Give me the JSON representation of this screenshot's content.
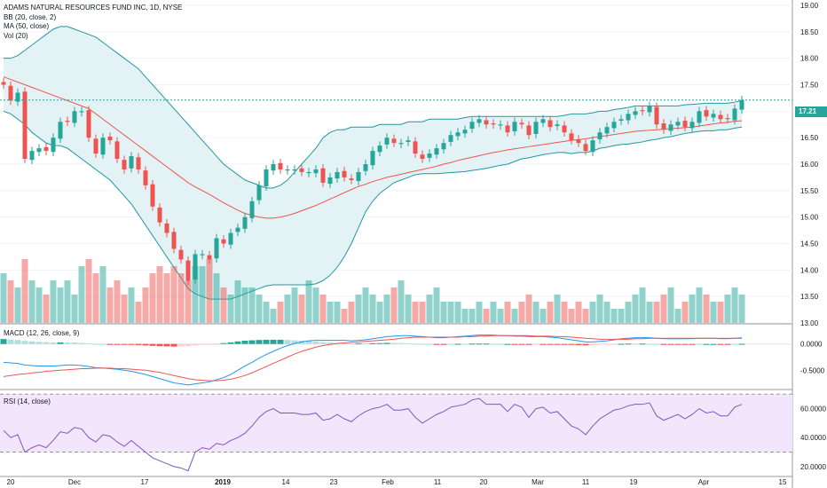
{
  "chart": {
    "legend_main": {
      "title": "ADAMS NATURAL RESOURCES FUND INC, 1D, NYSE",
      "bb": "BB (20, close, 2)",
      "ma": "MA (50, close)",
      "vol": "Vol (20)"
    },
    "macd_label": "MACD (12, 26, close, 9)",
    "rsi_label": "RSI (14, close)",
    "last_price_label": "17.21",
    "colors": {
      "up": "#26a69a",
      "down": "#ef5350",
      "bb_line": "#2196a0",
      "bb_fill": "#e3f3f5",
      "ma": "#ef5350",
      "macd": "#2196f3",
      "signal": "#ef5350",
      "rsi": "#7e57c2",
      "rsi_band": "#f3e5fb"
    }
  },
  "chart_data": {
    "type": "candlestick",
    "title": "ADAMS NATURAL RESOURCES FUND INC, 1D, NYSE",
    "x_tick_labels": [
      "20",
      "Dec",
      "17",
      "2019",
      "14",
      "23",
      "Feb",
      "11",
      "20",
      "Mar",
      "11",
      "19",
      "Apr",
      "15"
    ],
    "price_axis_labels": [
      "19.00",
      "18.50",
      "18.00",
      "17.50",
      "17.00",
      "16.50",
      "16.00",
      "15.50",
      "15.00",
      "14.50",
      "14.00",
      "13.50",
      "13.00"
    ],
    "price_range": [
      13.0,
      19.0
    ],
    "last_price": 17.21,
    "macd_axis_labels": [
      "0.0000",
      "-0.5000"
    ],
    "macd_range": [
      -0.85,
      0.35
    ],
    "rsi_axis_labels": [
      "60.0000",
      "40.0000",
      "20.0000"
    ],
    "rsi_range": [
      15,
      72
    ],
    "rsi_band": [
      30,
      70
    ],
    "closes": [
      17.5,
      17.2,
      17.35,
      16.1,
      16.25,
      16.3,
      16.25,
      16.5,
      16.8,
      16.8,
      17.0,
      17.0,
      16.5,
      16.2,
      16.5,
      16.45,
      16.1,
      15.9,
      16.15,
      15.9,
      15.6,
      15.2,
      14.9,
      14.7,
      14.4,
      14.2,
      13.8,
      14.3,
      14.3,
      14.2,
      14.6,
      14.5,
      14.7,
      14.8,
      15.0,
      15.3,
      15.6,
      15.9,
      16.0,
      15.9,
      15.9,
      15.9,
      15.85,
      15.85,
      15.9,
      15.65,
      15.75,
      15.85,
      15.75,
      15.7,
      15.85,
      16.0,
      16.25,
      16.35,
      16.5,
      16.4,
      16.4,
      16.45,
      16.2,
      16.1,
      16.2,
      16.3,
      16.4,
      16.55,
      16.6,
      16.65,
      16.8,
      16.85,
      16.75,
      16.75,
      16.75,
      16.6,
      16.8,
      16.75,
      16.55,
      16.8,
      16.85,
      16.7,
      16.75,
      16.6,
      16.45,
      16.4,
      16.25,
      16.45,
      16.6,
      16.7,
      16.8,
      16.85,
      16.95,
      17.0,
      17.0,
      17.1,
      16.75,
      16.65,
      16.75,
      16.8,
      16.7,
      16.8,
      17.0,
      16.9,
      16.95,
      16.85,
      16.85,
      17.05,
      17.21
    ],
    "volumes": [
      7,
      6,
      5,
      9,
      6,
      5,
      4,
      6,
      5,
      6,
      4,
      8,
      9,
      7,
      8,
      5,
      6,
      4,
      5,
      3,
      5,
      7,
      8,
      7,
      8,
      7,
      6,
      8,
      8,
      9,
      7,
      5,
      4,
      6,
      5,
      5,
      4,
      3,
      2,
      3,
      4,
      5,
      4,
      6,
      5,
      4,
      3,
      3,
      2,
      3,
      4,
      5,
      4,
      3,
      4,
      5,
      6,
      4,
      3,
      3,
      4,
      5,
      3,
      3,
      3,
      2,
      2,
      3,
      2,
      3,
      2,
      3,
      2,
      3,
      4,
      3,
      2,
      3,
      4,
      3,
      2,
      3,
      2,
      3,
      4,
      3,
      2,
      2,
      3,
      4,
      5,
      3,
      3,
      4,
      5,
      2,
      3,
      4,
      5,
      4,
      3,
      3,
      4,
      5,
      4
    ],
    "macd_values": [
      -0.35,
      -0.36,
      -0.37,
      -0.4,
      -0.41,
      -0.42,
      -0.42,
      -0.42,
      -0.41,
      -0.4,
      -0.4,
      -0.41,
      -0.43,
      -0.45,
      -0.46,
      -0.47,
      -0.48,
      -0.5,
      -0.52,
      -0.55,
      -0.58,
      -0.62,
      -0.66,
      -0.7,
      -0.74,
      -0.76,
      -0.78,
      -0.76,
      -0.74,
      -0.72,
      -0.68,
      -0.64,
      -0.58,
      -0.5,
      -0.42,
      -0.35,
      -0.27,
      -0.2,
      -0.14,
      -0.08,
      -0.03,
      0.01,
      0.04,
      0.06,
      0.07,
      0.07,
      0.07,
      0.07,
      0.07,
      0.06,
      0.07,
      0.08,
      0.1,
      0.12,
      0.14,
      0.15,
      0.16,
      0.16,
      0.15,
      0.14,
      0.13,
      0.12,
      0.12,
      0.13,
      0.14,
      0.15,
      0.16,
      0.17,
      0.17,
      0.17,
      0.16,
      0.16,
      0.15,
      0.15,
      0.14,
      0.14,
      0.14,
      0.13,
      0.12,
      0.1,
      0.08,
      0.06,
      0.04,
      0.04,
      0.05,
      0.06,
      0.08,
      0.1,
      0.11,
      0.12,
      0.12,
      0.12,
      0.11,
      0.1,
      0.1,
      0.1,
      0.1,
      0.1,
      0.11,
      0.11,
      0.11,
      0.1,
      0.1,
      0.11,
      0.12
    ],
    "signal_values": [
      -0.62,
      -0.6,
      -0.58,
      -0.57,
      -0.55,
      -0.54,
      -0.52,
      -0.51,
      -0.5,
      -0.49,
      -0.48,
      -0.47,
      -0.47,
      -0.46,
      -0.46,
      -0.46,
      -0.47,
      -0.47,
      -0.48,
      -0.49,
      -0.5,
      -0.52,
      -0.54,
      -0.57,
      -0.6,
      -0.63,
      -0.66,
      -0.68,
      -0.69,
      -0.7,
      -0.7,
      -0.69,
      -0.67,
      -0.64,
      -0.6,
      -0.55,
      -0.49,
      -0.43,
      -0.37,
      -0.31,
      -0.25,
      -0.19,
      -0.14,
      -0.1,
      -0.06,
      -0.03,
      -0.01,
      0.01,
      0.02,
      0.03,
      0.04,
      0.05,
      0.06,
      0.07,
      0.08,
      0.09,
      0.11,
      0.12,
      0.13,
      0.13,
      0.13,
      0.13,
      0.13,
      0.13,
      0.13,
      0.14,
      0.14,
      0.15,
      0.15,
      0.16,
      0.16,
      0.16,
      0.16,
      0.16,
      0.16,
      0.15,
      0.15,
      0.15,
      0.14,
      0.14,
      0.13,
      0.12,
      0.11,
      0.1,
      0.09,
      0.09,
      0.09,
      0.09,
      0.09,
      0.1,
      0.1,
      0.11,
      0.11,
      0.11,
      0.11,
      0.11,
      0.11,
      0.11,
      0.11,
      0.11,
      0.11,
      0.11,
      0.11,
      0.11,
      0.11
    ],
    "rsi_values": [
      45,
      40,
      42,
      30,
      33,
      35,
      33,
      38,
      44,
      43,
      47,
      46,
      40,
      37,
      42,
      41,
      37,
      34,
      38,
      34,
      30,
      26,
      24,
      22,
      20,
      19,
      17,
      30,
      33,
      32,
      36,
      35,
      38,
      40,
      43,
      48,
      54,
      58,
      60,
      57,
      57,
      57,
      56,
      56,
      57,
      52,
      53,
      56,
      53,
      51,
      55,
      58,
      60,
      61,
      63,
      59,
      59,
      60,
      54,
      50,
      53,
      56,
      58,
      61,
      62,
      63,
      66,
      67,
      63,
      63,
      63,
      58,
      63,
      61,
      54,
      60,
      61,
      57,
      58,
      53,
      48,
      46,
      42,
      48,
      53,
      56,
      59,
      60,
      62,
      63,
      63,
      64,
      55,
      52,
      54,
      56,
      53,
      56,
      60,
      57,
      58,
      55,
      55,
      61,
      63
    ],
    "bb_upper": [
      18.0,
      18.0,
      18.05,
      18.15,
      18.25,
      18.35,
      18.45,
      18.55,
      18.6,
      18.6,
      18.55,
      18.5,
      18.45,
      18.4,
      18.3,
      18.2,
      18.1,
      18.0,
      17.9,
      17.8,
      17.65,
      17.5,
      17.35,
      17.2,
      17.05,
      16.9,
      16.75,
      16.6,
      16.45,
      16.3,
      16.15,
      16.0,
      15.9,
      15.8,
      15.7,
      15.65,
      15.6,
      15.55,
      15.55,
      15.6,
      15.7,
      15.85,
      16.0,
      16.15,
      16.3,
      16.5,
      16.6,
      16.65,
      16.65,
      16.7,
      16.7,
      16.7,
      16.7,
      16.75,
      16.75,
      16.75,
      16.75,
      16.8,
      16.8,
      16.8,
      16.85,
      16.85,
      16.85,
      16.85,
      16.85,
      16.88,
      16.9,
      16.9,
      16.9,
      16.9,
      16.9,
      16.9,
      16.9,
      16.9,
      16.9,
      16.9,
      16.9,
      16.9,
      16.9,
      16.92,
      16.95,
      16.95,
      16.95,
      16.97,
      17.0,
      17.0,
      17.03,
      17.05,
      17.07,
      17.1,
      17.1,
      17.1,
      17.1,
      17.1,
      17.1,
      17.1,
      17.12,
      17.13,
      17.14,
      17.15,
      17.15,
      17.15,
      17.15,
      17.17,
      17.2
    ],
    "bb_lower": [
      17.0,
      16.95,
      16.85,
      16.75,
      16.6,
      16.5,
      16.4,
      16.35,
      16.35,
      16.3,
      16.2,
      16.1,
      16.0,
      15.9,
      15.8,
      15.7,
      15.55,
      15.4,
      15.25,
      15.05,
      14.85,
      14.65,
      14.45,
      14.25,
      14.05,
      13.85,
      13.65,
      13.55,
      13.5,
      13.45,
      13.45,
      13.45,
      13.45,
      13.5,
      13.55,
      13.6,
      13.65,
      13.7,
      13.72,
      13.72,
      13.72,
      13.72,
      13.72,
      13.72,
      13.74,
      13.8,
      13.9,
      14.05,
      14.25,
      14.5,
      14.8,
      15.1,
      15.3,
      15.45,
      15.55,
      15.65,
      15.7,
      15.75,
      15.8,
      15.82,
      15.82,
      15.82,
      15.83,
      15.84,
      15.85,
      15.86,
      15.88,
      15.9,
      15.92,
      15.95,
      15.98,
      16.0,
      16.05,
      16.1,
      16.12,
      16.15,
      16.18,
      16.2,
      16.22,
      16.22,
      16.2,
      16.22,
      16.22,
      16.25,
      16.3,
      16.32,
      16.35,
      16.37,
      16.38,
      16.4,
      16.42,
      16.45,
      16.47,
      16.5,
      16.52,
      16.55,
      16.58,
      16.6,
      16.62,
      16.63,
      16.63,
      16.65,
      16.65,
      16.68,
      16.7
    ],
    "ma_values": [
      17.65,
      17.6,
      17.55,
      17.5,
      17.45,
      17.4,
      17.35,
      17.3,
      17.25,
      17.2,
      17.15,
      17.1,
      17.05,
      16.95,
      16.85,
      16.75,
      16.65,
      16.55,
      16.45,
      16.35,
      16.25,
      16.15,
      16.05,
      15.95,
      15.85,
      15.75,
      15.65,
      15.57,
      15.5,
      15.43,
      15.35,
      15.27,
      15.2,
      15.13,
      15.07,
      15.03,
      15.0,
      14.98,
      14.98,
      15.0,
      15.03,
      15.07,
      15.12,
      15.17,
      15.22,
      15.28,
      15.34,
      15.4,
      15.46,
      15.52,
      15.58,
      15.62,
      15.67,
      15.71,
      15.75,
      15.78,
      15.81,
      15.84,
      15.87,
      15.9,
      15.93,
      15.96,
      16.0,
      16.03,
      16.07,
      16.1,
      16.13,
      16.16,
      16.19,
      16.22,
      16.24,
      16.27,
      16.29,
      16.31,
      16.33,
      16.35,
      16.37,
      16.39,
      16.41,
      16.43,
      16.45,
      16.46,
      16.48,
      16.5,
      16.52,
      16.54,
      16.56,
      16.58,
      16.6,
      16.62,
      16.63,
      16.64,
      16.65,
      16.66,
      16.67,
      16.68,
      16.69,
      16.7,
      16.72,
      16.74,
      16.76,
      16.78,
      16.79,
      16.81,
      16.82
    ]
  }
}
